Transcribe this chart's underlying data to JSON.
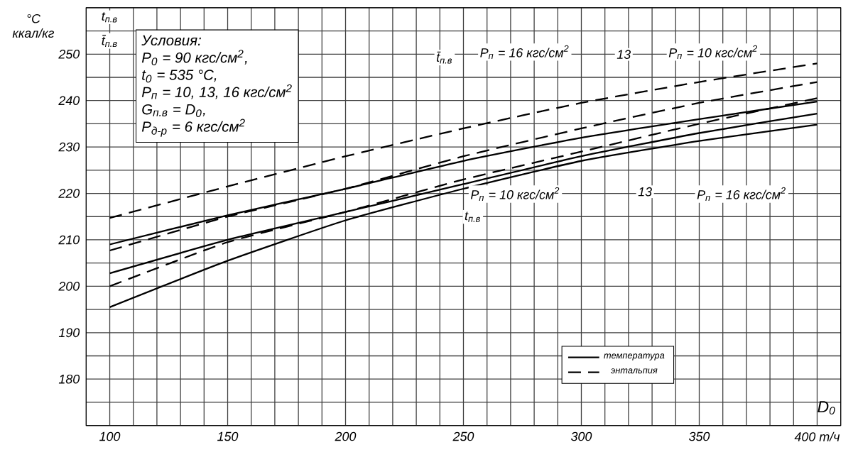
{
  "chart_data": {
    "type": "line",
    "xlabel": "D$_{0}$",
    "ylabel": "°C ккал/кг",
    "x": [
      100,
      150,
      200,
      250,
      300,
      350,
      400
    ],
    "series": [
      {
        "name": "температура",
        "color": "#000000",
        "line_style": "solid",
        "values": [
          195.5,
          205.5,
          214.2,
          221,
          227,
          231.3,
          234.8
        ]
      },
      {
        "color": "#000000",
        "line_style": "solid",
        "values": [
          202.8,
          210,
          216,
          222,
          228,
          233,
          237.2
        ]
      },
      {
        "color": "#000000",
        "line_style": "solid",
        "values": [
          209,
          215.3,
          221,
          227,
          232,
          236,
          239.8
        ]
      },
      {
        "name": "энтальпия",
        "color": "#000000",
        "line_style": "dashed",
        "values": [
          200,
          209.5,
          216,
          223,
          229,
          235,
          240.5
        ]
      },
      {
        "color": "#000000",
        "line_style": "dashed",
        "values": [
          207.7,
          215,
          221,
          228,
          234,
          239.5,
          244
        ]
      },
      {
        "color": "#000000",
        "line_style": "dashed",
        "values": [
          214.7,
          221.5,
          228,
          234,
          239.5,
          244,
          248
        ]
      }
    ],
    "xlim": [
      90,
      410
    ],
    "ylim": [
      170,
      260
    ],
    "xticks": [
      {
        "value": 90,
        "label": null
      },
      100,
      {
        "value": 110,
        "label": null
      },
      {
        "value": 120,
        "label": null
      },
      {
        "value": 130,
        "label": null
      },
      {
        "value": 140,
        "label": null
      },
      150,
      {
        "value": 160,
        "label": null
      },
      {
        "value": 170,
        "label": null
      },
      {
        "value": 180,
        "label": null
      },
      {
        "value": 190,
        "label": null
      },
      200,
      {
        "value": 210,
        "label": null
      },
      {
        "value": 220,
        "label": null
      },
      {
        "value": 230,
        "label": null
      },
      {
        "value": 240,
        "label": null
      },
      250,
      {
        "value": 260,
        "label": null
      },
      {
        "value": 270,
        "label": null
      },
      {
        "value": 280,
        "label": null
      },
      {
        "value": 290,
        "label": null
      },
      300,
      {
        "value": 310,
        "label": null
      },
      {
        "value": 320,
        "label": null
      },
      {
        "value": 330,
        "label": null
      },
      {
        "value": 340,
        "label": null
      },
      350,
      {
        "value": 360,
        "label": null
      },
      {
        "value": 370,
        "label": null
      },
      {
        "value": 380,
        "label": null
      },
      {
        "value": 390,
        "label": null
      },
      {
        "value": 400,
        "label": "400 т/ч"
      },
      {
        "value": 410,
        "label": null
      }
    ],
    "yticks": [
      {
        "value": 170,
        "label": null
      },
      {
        "value": 175,
        "label": null
      },
      180,
      {
        "value": 185,
        "label": null
      },
      190,
      {
        "value": 195,
        "label": null
      },
      200,
      {
        "value": 205,
        "label": null
      },
      210,
      {
        "value": 215,
        "label": null
      },
      220,
      {
        "value": 225,
        "label": null
      },
      230,
      {
        "value": 235,
        "label": null
      },
      240,
      {
        "value": 245,
        "label": null
      },
      250,
      {
        "value": 255,
        "label": null
      },
      {
        "value": 260,
        "label": null
      }
    ],
    "grid": true,
    "legend": "bottom right",
    "annotations": [
      "Условия:",
      "P$_{0}$ = 90 кгс/см$^{2}$,",
      "t$_{0}$ = 535 °C,",
      "P$_{п}$ = 10, 13, 16 кгс/см$^{2}$",
      "G$_{п.в}$ = D$_{0}$,",
      "P$_{д-р}$ = 6 кгс/см$^{2}$",
      "t̄$_{п.в}$",
      "P$_{п}$ = 16 кгс/см$^{2}$",
      "13",
      "P$_{п}$ = 10 кгс/см$^{2}$",
      "P$_{п}$ = 10 кгс/см$^{2}$",
      "13",
      "P$_{п}$ = 16 кгс/см$^{2}$",
      "t$_{п.в}$",
      "t$_{п.в}$",
      "t̄$_{п.в}$"
    ]
  }
}
